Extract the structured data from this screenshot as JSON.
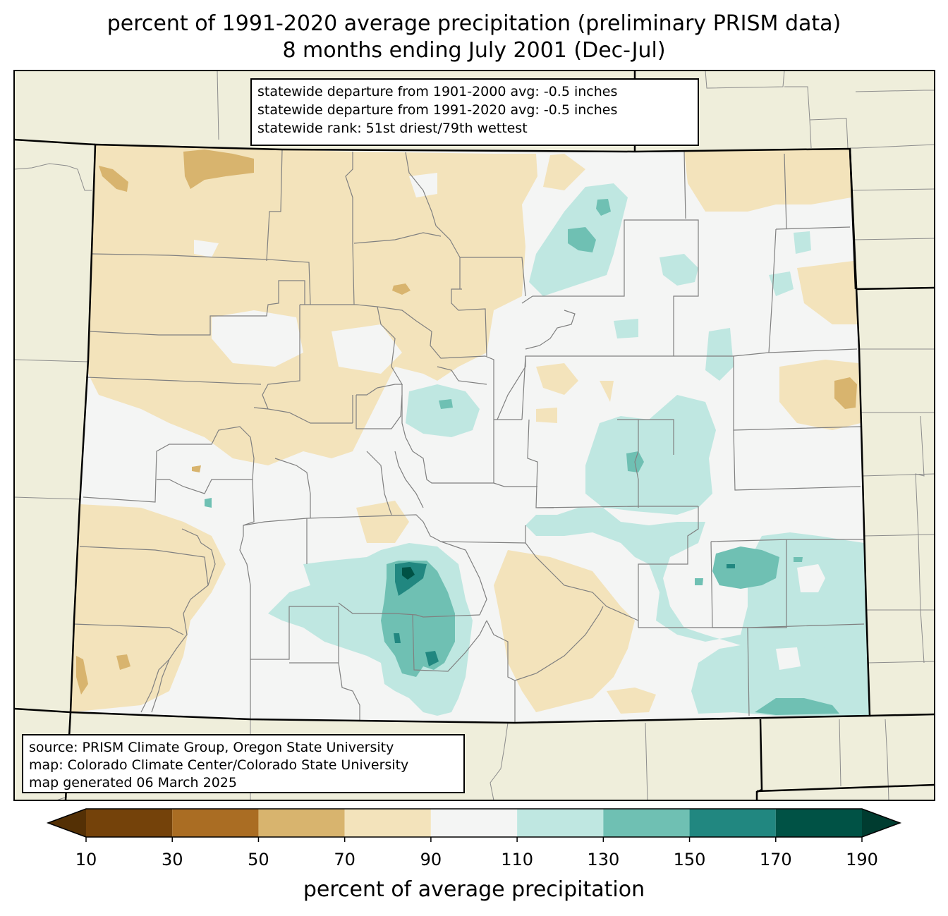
{
  "title_line1": "percent of 1991-2020 average precipitation (preliminary PRISM data)",
  "title_line2": "8 months ending July 2001 (Dec-Jul)",
  "stats": [
    "statewide departure from 1901-2000 avg: -0.5 inches",
    "statewide departure from 1991-2020 avg: -0.5 inches",
    "statewide rank: 51st driest/79th wettest"
  ],
  "source": [
    "source: PRISM Climate Group, Oregon State University",
    "map: Colorado Climate Center/Colorado State University",
    "map generated 06 March 2025"
  ],
  "colorbar": {
    "label": "percent of average precipitation",
    "ticks": [
      "10",
      "30",
      "50",
      "70",
      "90",
      "110",
      "130",
      "150",
      "170",
      "190"
    ],
    "under_color": "#543005",
    "over_color": "#003c30",
    "bins": [
      {
        "from": 10,
        "to": 30,
        "color": "#74420a"
      },
      {
        "from": 30,
        "to": 50,
        "color": "#aa6d23"
      },
      {
        "from": 50,
        "to": 70,
        "color": "#d8b46e"
      },
      {
        "from": 70,
        "to": 90,
        "color": "#f3e3bb"
      },
      {
        "from": 90,
        "to": 110,
        "color": "#f4f5f4"
      },
      {
        "from": 110,
        "to": 130,
        "color": "#bfe7e1"
      },
      {
        "from": 130,
        "to": 150,
        "color": "#6fc0b3"
      },
      {
        "from": 150,
        "to": 170,
        "color": "#218780"
      },
      {
        "from": 170,
        "to": 190,
        "color": "#005245"
      }
    ]
  },
  "map_colors": {
    "background_land": "#efeedb",
    "state_border": "#000000",
    "county_border": "#808080"
  }
}
